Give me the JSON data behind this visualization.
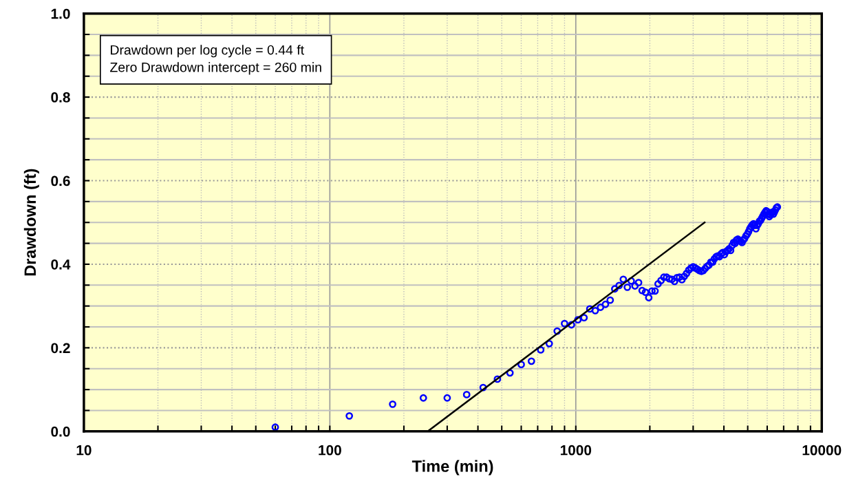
{
  "chart_data": {
    "type": "scatter",
    "xlabel": "Time (min)",
    "ylabel": "Drawdown (ft)",
    "log": "x",
    "xlim": [
      10,
      10000
    ],
    "xticks": [
      10,
      100,
      1000,
      10000
    ],
    "ylim": [
      0,
      1.0
    ],
    "yticks": [
      {
        "value": 0,
        "label": "0.0"
      },
      {
        "value": 0.2,
        "label": "0.2"
      },
      {
        "value": 0.4,
        "label": "0.4"
      },
      {
        "value": 0.6,
        "label": "0.6"
      },
      {
        "value": 0.8,
        "label": "0.8"
      },
      {
        "value": 1.0,
        "label": "1.0"
      }
    ],
    "grid": true,
    "marker": "circle",
    "annotations": [
      "Drawdown per log cycle = 0.44 ft\nZero Drawdown intercept = 260 min"
    ],
    "series": [
      {
        "color": "#0000ff",
        "x": [
          60,
          120,
          180,
          240,
          300,
          360,
          420,
          480,
          540,
          600,
          660,
          720,
          780,
          840,
          900,
          960,
          1020,
          1080,
          1140,
          1200,
          1260,
          1320,
          1380,
          1440,
          1500,
          1560,
          1620,
          1680,
          1740,
          1800,
          1860,
          1920,
          1980,
          2040,
          2100,
          2160,
          2220,
          2280,
          2340,
          2400,
          2460,
          2520,
          2580,
          2640,
          2700,
          2760,
          2820,
          2880,
          2940,
          3000,
          3060,
          3120,
          3180,
          3240,
          3300,
          3360,
          3420,
          3480,
          3540,
          3600,
          3660,
          3720,
          3780,
          3840,
          3900,
          3960,
          4020,
          4080,
          4140,
          4200,
          4260,
          4320,
          4380,
          4440,
          4500,
          4560,
          4620,
          4680,
          4740,
          4800,
          4860,
          4920,
          4980,
          5040,
          5100,
          5160,
          5220,
          5280,
          5340,
          5400,
          5460,
          5520,
          5580,
          5640,
          5700,
          5760,
          5820,
          5880,
          5940,
          6000,
          6060,
          6120,
          6180,
          6240,
          6300,
          6360,
          6420,
          6480,
          6540,
          6600
        ],
        "values": [
          0.01,
          0.037,
          0.065,
          0.08,
          0.08,
          0.088,
          0.105,
          0.125,
          0.14,
          0.16,
          0.168,
          0.195,
          0.21,
          0.24,
          0.258,
          0.255,
          0.267,
          0.272,
          0.293,
          0.289,
          0.297,
          0.304,
          0.314,
          0.341,
          0.349,
          0.364,
          0.345,
          0.36,
          0.348,
          0.356,
          0.337,
          0.333,
          0.32,
          0.336,
          0.336,
          0.353,
          0.361,
          0.369,
          0.369,
          0.365,
          0.364,
          0.359,
          0.368,
          0.369,
          0.363,
          0.371,
          0.378,
          0.386,
          0.391,
          0.394,
          0.391,
          0.388,
          0.385,
          0.383,
          0.385,
          0.39,
          0.395,
          0.398,
          0.405,
          0.405,
          0.413,
          0.418,
          0.42,
          0.418,
          0.425,
          0.428,
          0.423,
          0.43,
          0.433,
          0.437,
          0.433,
          0.445,
          0.452,
          0.45,
          0.458,
          0.46,
          0.457,
          0.455,
          0.452,
          0.458,
          0.462,
          0.468,
          0.472,
          0.478,
          0.485,
          0.49,
          0.494,
          0.497,
          0.493,
          0.485,
          0.493,
          0.497,
          0.503,
          0.505,
          0.51,
          0.515,
          0.52,
          0.524,
          0.528,
          0.526,
          0.52,
          0.514,
          0.518,
          0.522,
          0.525,
          0.52,
          0.525,
          0.53,
          0.535,
          0.537
        ]
      },
      {
        "type": "line",
        "color": "#000000",
        "marker": "none",
        "x": [
          250,
          3340
        ],
        "values": [
          0,
          0.5
        ]
      }
    ]
  }
}
